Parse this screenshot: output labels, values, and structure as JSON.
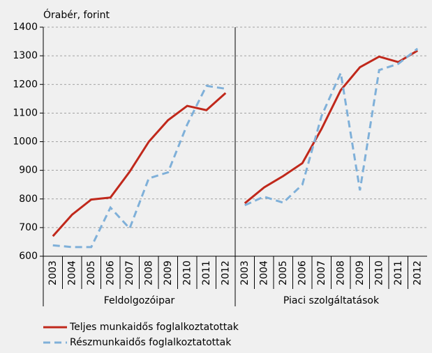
{
  "chart_data": {
    "type": "line",
    "ylabel": "Órabér, forint",
    "groups": [
      "Feldolgozóipar",
      "Piaci szolgáltatások"
    ],
    "categories": [
      [
        "2003",
        "2004",
        "2005",
        "2006",
        "2007",
        "2008",
        "2009",
        "2010",
        "2011",
        "2012"
      ],
      [
        "2003",
        "2004",
        "2005",
        "2006",
        "2007",
        "2008",
        "2009",
        "2010",
        "2011",
        "2012"
      ]
    ],
    "series": [
      {
        "name": "Teljes munkaidős foglalkoztatottak",
        "color": "#c0281b",
        "dashed": false,
        "values": [
          [
            670,
            745,
            798,
            805,
            895,
            1000,
            1075,
            1125,
            1110,
            1170
          ],
          [
            785,
            840,
            880,
            925,
            1045,
            1180,
            1260,
            1297,
            1278,
            1318
          ]
        ]
      },
      {
        "name": "Részmunkaidős foglalkoztatottak",
        "color": "#7fb0d9",
        "dashed": true,
        "values": [
          [
            638,
            632,
            632,
            770,
            697,
            872,
            893,
            1060,
            1195,
            1185
          ],
          [
            778,
            808,
            787,
            850,
            1090,
            1240,
            830,
            1250,
            1272,
            1325
          ]
        ]
      }
    ],
    "ylim": [
      600,
      1400
    ],
    "yticks": [
      600,
      700,
      800,
      900,
      1000,
      1100,
      1200,
      1300,
      1400
    ],
    "grid": true
  }
}
